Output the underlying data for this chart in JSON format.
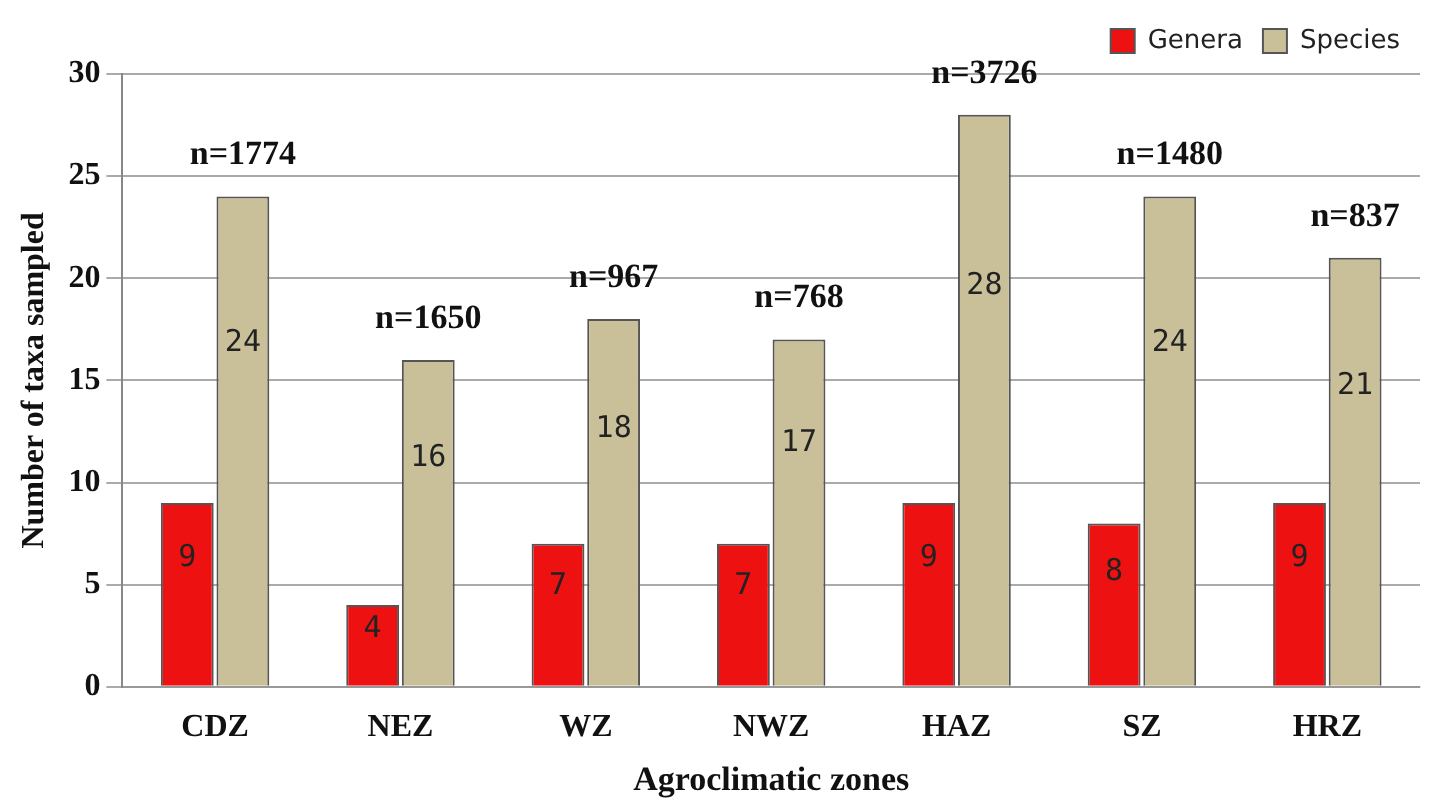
{
  "chart_data": {
    "type": "bar",
    "xlabel": "Agroclimatic zones",
    "ylabel": "Number of taxa sampled",
    "categories": [
      "CDZ",
      "NEZ",
      "WZ",
      "NWZ",
      "HAZ",
      "SZ",
      "HRZ"
    ],
    "series": [
      {
        "name": "Genera",
        "color": "#ee1111",
        "values": [
          9,
          4,
          7,
          7,
          9,
          8,
          9
        ]
      },
      {
        "name": "Species",
        "color": "#c9c09a",
        "values": [
          24,
          16,
          18,
          17,
          28,
          24,
          21
        ]
      }
    ],
    "ylim": [
      0,
      30
    ],
    "yticks": [
      0,
      5,
      10,
      15,
      20,
      25,
      30
    ],
    "grid": "y",
    "legend": "top right",
    "data_labels": true,
    "annotations": [
      {
        "text": "n=1774",
        "x": "CDZ",
        "y": 24
      },
      {
        "text": "n=1650",
        "x": "NEZ",
        "y": 16
      },
      {
        "text": "n=967",
        "x": "WZ",
        "y": 18
      },
      {
        "text": "n=768",
        "x": "NWZ",
        "y": 17
      },
      {
        "text": "n=3726",
        "x": "HAZ",
        "y": 28
      },
      {
        "text": "n=1480",
        "x": "SZ",
        "y": 24
      },
      {
        "text": "n=837",
        "x": "HRZ",
        "y": 21
      }
    ]
  }
}
